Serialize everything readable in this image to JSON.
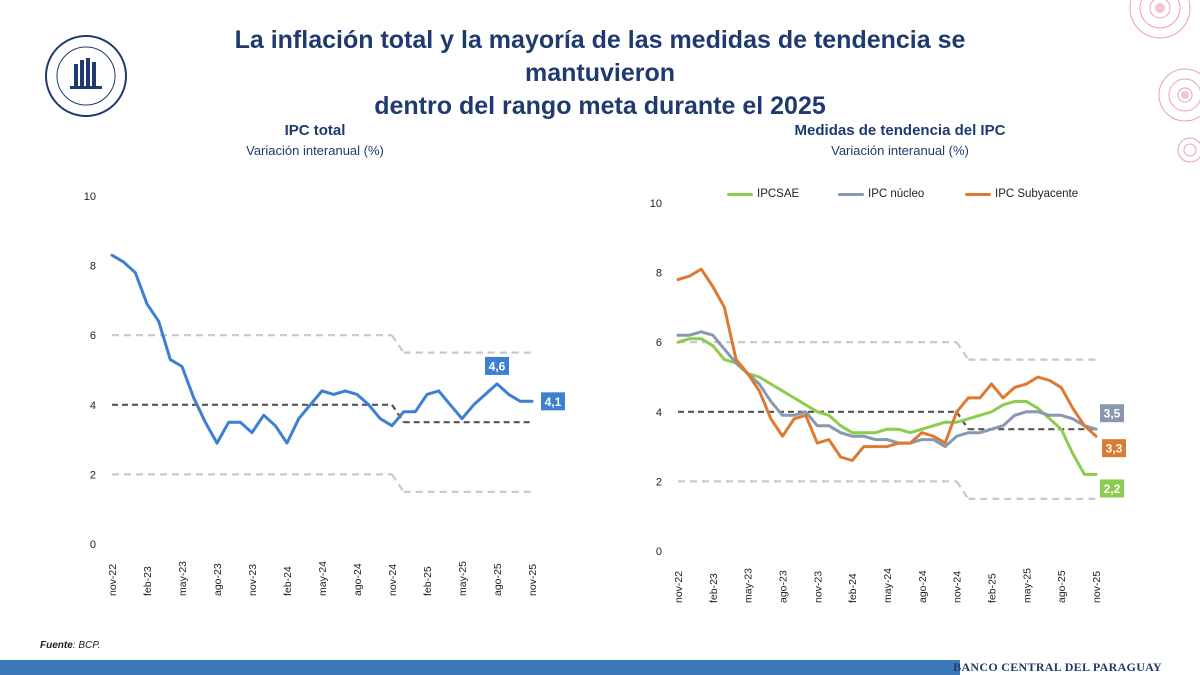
{
  "header": {
    "title_line1": "La inflación total y la mayoría de las medidas de tendencia se mantuvieron",
    "title_line2": "dentro del rango meta durante el 2025",
    "logo_text_top": "BANCO CENTRAL",
    "logo_text_bottom": "DEL PARAGUAY"
  },
  "footer": {
    "source_label": "Fuente",
    "source_value": ": BCP.",
    "org_name": "BANCO CENTRAL DEL PARAGUAY"
  },
  "colors": {
    "title": "#1f3a6e",
    "ipc_total": "#3d7fd0",
    "ipcsae": "#8ccc4e",
    "ipc_nucleo": "#8898b0",
    "ipc_subyacente": "#dd7a32",
    "target": "#555555",
    "range": "#c8c8c8",
    "footer_bar": "#3d78b9"
  },
  "chart_data": [
    {
      "type": "line",
      "title": "IPC total",
      "subtitle": "Variación interanual (%)",
      "ylim": [
        0,
        10
      ],
      "yticks": [
        "0",
        "2",
        "4",
        "6",
        "8",
        "10"
      ],
      "x_tick_labels": [
        "nov-22",
        "feb-23",
        "may-23",
        "ago-23",
        "nov-23",
        "feb-24",
        "may-24",
        "ago-24",
        "nov-24",
        "feb-25",
        "may-25",
        "ago-25",
        "nov-25"
      ],
      "x": [
        "nov-22",
        "dic-22",
        "ene-23",
        "feb-23",
        "mar-23",
        "abr-23",
        "may-23",
        "jun-23",
        "jul-23",
        "ago-23",
        "sep-23",
        "oct-23",
        "nov-23",
        "dic-23",
        "ene-24",
        "feb-24",
        "mar-24",
        "abr-24",
        "may-24",
        "jun-24",
        "jul-24",
        "ago-24",
        "sep-24",
        "oct-24",
        "nov-24",
        "dic-24",
        "ene-25",
        "feb-25",
        "mar-25",
        "abr-25",
        "may-25",
        "jun-25",
        "jul-25",
        "ago-25",
        "sep-25",
        "oct-25",
        "nov-25"
      ],
      "series": [
        {
          "values": [
            8.3,
            8.1,
            7.8,
            6.9,
            6.4,
            5.3,
            5.1,
            4.2,
            3.5,
            2.9,
            3.5,
            3.5,
            3.2,
            3.7,
            3.4,
            2.9,
            3.6,
            4.0,
            4.4,
            4.3,
            4.4,
            4.3,
            4.0,
            3.6,
            3.4,
            3.8,
            3.8,
            4.3,
            4.4,
            4.0,
            3.6,
            4.0,
            4.3,
            4.6,
            4.3,
            4.1,
            4.1
          ],
          "data_labels": [
            {
              "x": "ago-25",
              "label": "4,6"
            },
            {
              "x": "nov-25",
              "label": "4,1"
            }
          ]
        }
      ],
      "target": {
        "center": [
          {
            "from": "nov-22",
            "to": "nov-24",
            "value": 4
          },
          {
            "from": "dic-24",
            "to": "nov-25",
            "value": 3.5
          }
        ],
        "upper": [
          {
            "from": "nov-22",
            "to": "nov-24",
            "value": 6
          },
          {
            "from": "dic-24",
            "to": "nov-25",
            "value": 5.5
          }
        ],
        "lower": [
          {
            "from": "nov-22",
            "to": "nov-24",
            "value": 2
          },
          {
            "from": "dic-24",
            "to": "nov-25",
            "value": 1.5
          }
        ]
      },
      "grid": false
    },
    {
      "type": "line",
      "title": "Medidas de tendencia del IPC",
      "subtitle": "Variación interanual (%)",
      "ylim": [
        0,
        10
      ],
      "yticks": [
        "0",
        "2",
        "4",
        "6",
        "8",
        "10"
      ],
      "legend_position": "top",
      "x_tick_labels": [
        "nov-22",
        "feb-23",
        "may-23",
        "ago-23",
        "nov-23",
        "feb-24",
        "may-24",
        "ago-24",
        "nov-24",
        "feb-25",
        "may-25",
        "ago-25",
        "nov-25"
      ],
      "x": [
        "nov-22",
        "dic-22",
        "ene-23",
        "feb-23",
        "mar-23",
        "abr-23",
        "may-23",
        "jun-23",
        "jul-23",
        "ago-23",
        "sep-23",
        "oct-23",
        "nov-23",
        "dic-23",
        "ene-24",
        "feb-24",
        "mar-24",
        "abr-24",
        "may-24",
        "jun-24",
        "jul-24",
        "ago-24",
        "sep-24",
        "oct-24",
        "nov-24",
        "dic-24",
        "ene-25",
        "feb-25",
        "mar-25",
        "abr-25",
        "may-25",
        "jun-25",
        "jul-25",
        "ago-25",
        "sep-25",
        "oct-25",
        "nov-25"
      ],
      "series": [
        {
          "name": "IPCSAE",
          "values": [
            6.0,
            6.1,
            6.1,
            5.9,
            5.5,
            5.4,
            5.1,
            5.0,
            4.8,
            4.6,
            4.4,
            4.2,
            4.0,
            3.9,
            3.6,
            3.4,
            3.4,
            3.4,
            3.5,
            3.5,
            3.4,
            3.5,
            3.6,
            3.7,
            3.7,
            3.8,
            3.9,
            4.0,
            4.2,
            4.3,
            4.3,
            4.1,
            3.8,
            3.5,
            2.8,
            2.2,
            2.2
          ],
          "data_label": "2,2"
        },
        {
          "name": "IPC núcleo",
          "values": [
            6.2,
            6.2,
            6.3,
            6.2,
            5.8,
            5.4,
            5.1,
            4.8,
            4.3,
            3.9,
            3.9,
            4.0,
            3.6,
            3.6,
            3.4,
            3.3,
            3.3,
            3.2,
            3.2,
            3.1,
            3.1,
            3.2,
            3.2,
            3.0,
            3.3,
            3.4,
            3.4,
            3.5,
            3.6,
            3.9,
            4.0,
            4.0,
            3.9,
            3.9,
            3.8,
            3.6,
            3.5
          ],
          "data_label": "3,5"
        },
        {
          "name": "IPC Subyacente",
          "values": [
            7.8,
            7.9,
            8.1,
            7.6,
            7.0,
            5.5,
            5.1,
            4.6,
            3.8,
            3.3,
            3.8,
            3.9,
            3.1,
            3.2,
            2.7,
            2.6,
            3.0,
            3.0,
            3.0,
            3.1,
            3.1,
            3.4,
            3.3,
            3.1,
            4.0,
            4.4,
            4.4,
            4.8,
            4.4,
            4.7,
            4.8,
            5.0,
            4.9,
            4.7,
            4.1,
            3.6,
            3.3
          ],
          "data_label": "3,3"
        }
      ],
      "target": {
        "center": [
          {
            "from": "nov-22",
            "to": "nov-24",
            "value": 4
          },
          {
            "from": "dic-24",
            "to": "nov-25",
            "value": 3.5
          }
        ],
        "upper": [
          {
            "from": "nov-22",
            "to": "nov-24",
            "value": 6
          },
          {
            "from": "dic-24",
            "to": "nov-25",
            "value": 5.5
          }
        ],
        "lower": [
          {
            "from": "nov-22",
            "to": "nov-24",
            "value": 2
          },
          {
            "from": "dic-24",
            "to": "nov-25",
            "value": 1.5
          }
        ]
      },
      "grid": false
    }
  ]
}
